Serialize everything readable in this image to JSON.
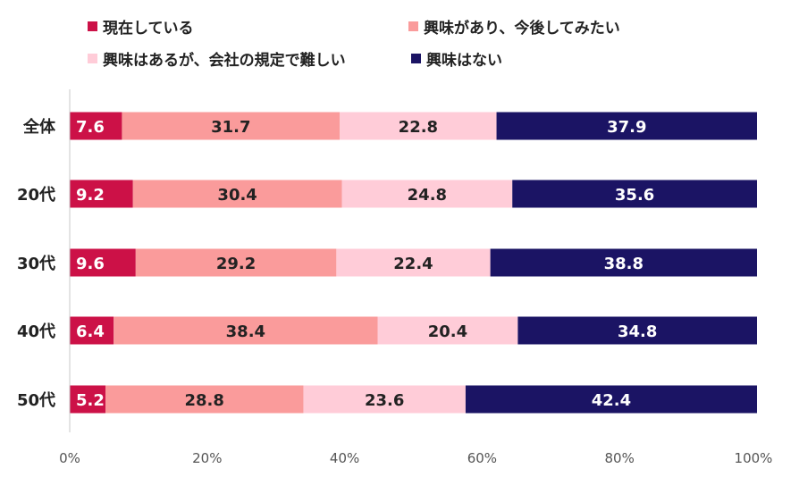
{
  "chart_data": {
    "type": "bar",
    "orientation": "horizontal",
    "stacked": true,
    "percent": true,
    "categories": [
      "全体",
      "20代",
      "30代",
      "40代",
      "50代"
    ],
    "series": [
      {
        "name": "現在している",
        "color": "#cc1147",
        "values": [
          7.6,
          9.2,
          9.6,
          6.4,
          5.2
        ]
      },
      {
        "name": "興味があり、今後してみたい",
        "color": "#fa9b9b",
        "values": [
          31.7,
          30.4,
          29.2,
          38.4,
          28.8
        ]
      },
      {
        "name": "興味はあるが、会社の規定で難しい",
        "color": "#ffccd8",
        "values": [
          22.8,
          24.8,
          22.4,
          20.4,
          23.6
        ]
      },
      {
        "name": "興味はない",
        "color": "#1b1464",
        "values": [
          37.9,
          35.6,
          38.8,
          34.8,
          42.4
        ]
      }
    ],
    "xlim": [
      0,
      100
    ],
    "xticks": [
      "0%",
      "20%",
      "40%",
      "60%",
      "80%",
      "100%"
    ],
    "legend_position": "top",
    "title": ""
  }
}
